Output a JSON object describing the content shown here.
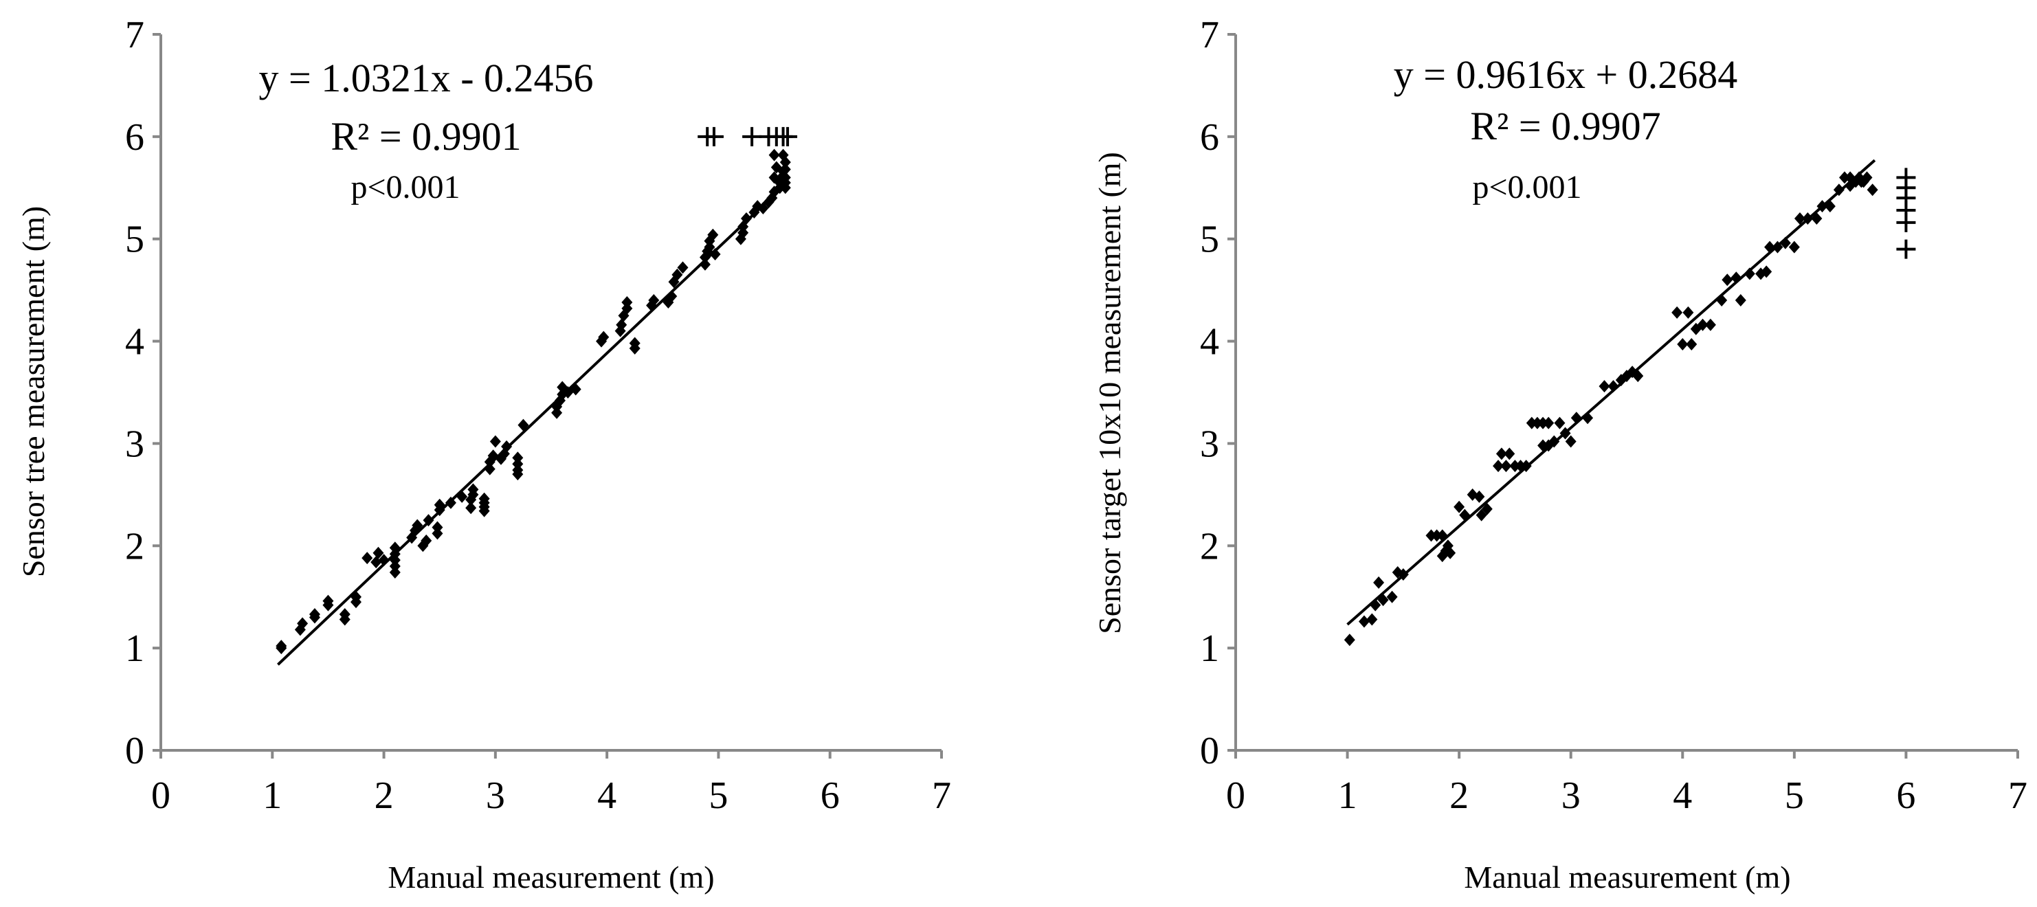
{
  "chart_data": [
    {
      "type": "scatter",
      "title": "",
      "xlabel": "Manual measurement (m)",
      "ylabel": "Sensor tree measurement (m)",
      "xlim": [
        0,
        7
      ],
      "ylim": [
        0,
        7
      ],
      "xticks": [
        "0",
        "1",
        "2",
        "3",
        "4",
        "5",
        "6",
        "7"
      ],
      "yticks": [
        "0",
        "1",
        "2",
        "3",
        "4",
        "5",
        "6",
        "7"
      ],
      "grid": false,
      "annotations": {
        "equation": "y = 1.0321x - 0.2456",
        "r2": "R² = 0.9901",
        "p": "p<0.001"
      },
      "trendline": {
        "slope": 1.0321,
        "intercept": -0.2456,
        "x_range": [
          1.05,
          5.62
        ]
      },
      "series": [
        {
          "name": "diamond points",
          "marker": "diamond",
          "points": [
            [
              1.08,
              1.02
            ],
            [
              1.08,
              1.0
            ],
            [
              1.25,
              1.18
            ],
            [
              1.27,
              1.24
            ],
            [
              1.38,
              1.3
            ],
            [
              1.38,
              1.33
            ],
            [
              1.5,
              1.42
            ],
            [
              1.5,
              1.46
            ],
            [
              1.65,
              1.28
            ],
            [
              1.65,
              1.33
            ],
            [
              1.75,
              1.45
            ],
            [
              1.75,
              1.5
            ],
            [
              1.85,
              1.88
            ],
            [
              1.93,
              1.84
            ],
            [
              1.95,
              1.93
            ],
            [
              2.0,
              1.86
            ],
            [
              2.1,
              1.74
            ],
            [
              2.1,
              1.8
            ],
            [
              2.1,
              1.86
            ],
            [
              2.1,
              1.92
            ],
            [
              2.1,
              1.98
            ],
            [
              2.25,
              2.08
            ],
            [
              2.28,
              2.15
            ],
            [
              2.3,
              2.2
            ],
            [
              2.35,
              2.0
            ],
            [
              2.38,
              2.05
            ],
            [
              2.4,
              2.25
            ],
            [
              2.48,
              2.12
            ],
            [
              2.48,
              2.18
            ],
            [
              2.5,
              2.35
            ],
            [
              2.5,
              2.4
            ],
            [
              2.6,
              2.42
            ],
            [
              2.7,
              2.48
            ],
            [
              2.78,
              2.37
            ],
            [
              2.78,
              2.45
            ],
            [
              2.8,
              2.5
            ],
            [
              2.8,
              2.55
            ],
            [
              2.9,
              2.34
            ],
            [
              2.9,
              2.38
            ],
            [
              2.9,
              2.42
            ],
            [
              2.9,
              2.46
            ],
            [
              2.95,
              2.75
            ],
            [
              2.95,
              2.82
            ],
            [
              2.98,
              2.88
            ],
            [
              3.0,
              3.02
            ],
            [
              3.05,
              2.85
            ],
            [
              3.08,
              2.9
            ],
            [
              3.1,
              2.97
            ],
            [
              3.2,
              2.7
            ],
            [
              3.2,
              2.74
            ],
            [
              3.2,
              2.8
            ],
            [
              3.2,
              2.86
            ],
            [
              3.25,
              3.18
            ],
            [
              3.55,
              3.3
            ],
            [
              3.55,
              3.36
            ],
            [
              3.58,
              3.42
            ],
            [
              3.6,
              3.48
            ],
            [
              3.6,
              3.55
            ],
            [
              3.65,
              3.5
            ],
            [
              3.72,
              3.53
            ],
            [
              3.95,
              4.0
            ],
            [
              3.97,
              4.04
            ],
            [
              4.12,
              4.1
            ],
            [
              4.13,
              4.16
            ],
            [
              4.15,
              4.25
            ],
            [
              4.18,
              4.32
            ],
            [
              4.18,
              4.38
            ],
            [
              4.25,
              3.93
            ],
            [
              4.25,
              3.98
            ],
            [
              4.4,
              4.35
            ],
            [
              4.42,
              4.4
            ],
            [
              4.55,
              4.38
            ],
            [
              4.58,
              4.44
            ],
            [
              4.6,
              4.58
            ],
            [
              4.63,
              4.65
            ],
            [
              4.68,
              4.72
            ],
            [
              4.88,
              4.75
            ],
            [
              4.88,
              4.82
            ],
            [
              4.9,
              4.88
            ],
            [
              4.92,
              4.92
            ],
            [
              4.92,
              4.98
            ],
            [
              4.95,
              5.04
            ],
            [
              4.97,
              4.85
            ],
            [
              5.2,
              5.0
            ],
            [
              5.22,
              5.06
            ],
            [
              5.22,
              5.12
            ],
            [
              5.25,
              5.2
            ],
            [
              5.32,
              5.26
            ],
            [
              5.35,
              5.32
            ],
            [
              5.4,
              5.3
            ],
            [
              5.45,
              5.36
            ],
            [
              5.48,
              5.4
            ],
            [
              5.5,
              5.46
            ],
            [
              5.5,
              5.6
            ],
            [
              5.52,
              5.7
            ],
            [
              5.55,
              5.5
            ],
            [
              5.55,
              5.55
            ],
            [
              5.58,
              5.58
            ],
            [
              5.58,
              5.62
            ],
            [
              5.58,
              5.66
            ],
            [
              5.6,
              5.5
            ],
            [
              5.6,
              5.55
            ],
            [
              5.6,
              5.6
            ],
            [
              5.6,
              5.68
            ],
            [
              5.5,
              5.82
            ],
            [
              5.58,
              5.82
            ],
            [
              5.6,
              5.75
            ]
          ]
        },
        {
          "name": "cross points",
          "marker": "plus",
          "points": [
            [
              4.9,
              6.0
            ],
            [
              4.96,
              6.0
            ],
            [
              5.3,
              6.0
            ],
            [
              5.45,
              6.0
            ],
            [
              5.52,
              6.0
            ],
            [
              5.58,
              6.0
            ],
            [
              5.62,
              6.0
            ]
          ]
        }
      ]
    },
    {
      "type": "scatter",
      "title": "",
      "xlabel": "Manual measurement (m)",
      "ylabel": "Sensor target 10x10 measurement (m)",
      "xlim": [
        0,
        7
      ],
      "ylim": [
        0,
        7
      ],
      "xticks": [
        "0",
        "1",
        "2",
        "3",
        "4",
        "5",
        "6",
        "7"
      ],
      "yticks": [
        "0",
        "1",
        "2",
        "3",
        "4",
        "5",
        "6",
        "7"
      ],
      "grid": false,
      "annotations": {
        "equation": "y = 0.9616x + 0.2684",
        "r2": "R² = 0.9907",
        "p": "p<0.001"
      },
      "trendline": {
        "slope": 0.9616,
        "intercept": 0.2684,
        "x_range": [
          1.0,
          5.72
        ]
      },
      "series": [
        {
          "name": "diamond points",
          "marker": "diamond",
          "points": [
            [
              1.02,
              1.08
            ],
            [
              1.15,
              1.26
            ],
            [
              1.22,
              1.28
            ],
            [
              1.25,
              1.42
            ],
            [
              1.28,
              1.64
            ],
            [
              1.32,
              1.47
            ],
            [
              1.4,
              1.5
            ],
            [
              1.45,
              1.74
            ],
            [
              1.5,
              1.72
            ],
            [
              1.75,
              2.1
            ],
            [
              1.8,
              2.1
            ],
            [
              1.85,
              2.1
            ],
            [
              1.85,
              1.9
            ],
            [
              1.88,
              1.95
            ],
            [
              1.9,
              2.0
            ],
            [
              1.92,
              1.93
            ],
            [
              2.0,
              2.38
            ],
            [
              2.05,
              2.3
            ],
            [
              2.12,
              2.5
            ],
            [
              2.18,
              2.48
            ],
            [
              2.2,
              2.3
            ],
            [
              2.25,
              2.36
            ],
            [
              2.35,
              2.78
            ],
            [
              2.38,
              2.9
            ],
            [
              2.42,
              2.78
            ],
            [
              2.45,
              2.9
            ],
            [
              2.5,
              2.78
            ],
            [
              2.55,
              2.78
            ],
            [
              2.6,
              2.78
            ],
            [
              2.65,
              3.2
            ],
            [
              2.7,
              3.2
            ],
            [
              2.75,
              3.2
            ],
            [
              2.8,
              3.2
            ],
            [
              2.9,
              3.2
            ],
            [
              2.75,
              2.98
            ],
            [
              2.8,
              2.98
            ],
            [
              2.85,
              3.02
            ],
            [
              2.95,
              3.1
            ],
            [
              3.0,
              3.02
            ],
            [
              3.05,
              3.25
            ],
            [
              3.15,
              3.25
            ],
            [
              3.3,
              3.56
            ],
            [
              3.38,
              3.56
            ],
            [
              3.45,
              3.62
            ],
            [
              3.5,
              3.66
            ],
            [
              3.55,
              3.7
            ],
            [
              3.6,
              3.66
            ],
            [
              3.95,
              4.28
            ],
            [
              4.05,
              4.28
            ],
            [
              4.0,
              3.97
            ],
            [
              4.08,
              3.97
            ],
            [
              4.12,
              4.12
            ],
            [
              4.18,
              4.16
            ],
            [
              4.25,
              4.16
            ],
            [
              4.35,
              4.4
            ],
            [
              4.4,
              4.6
            ],
            [
              4.48,
              4.62
            ],
            [
              4.52,
              4.4
            ],
            [
              4.6,
              4.66
            ],
            [
              4.7,
              4.66
            ],
            [
              4.75,
              4.68
            ],
            [
              4.78,
              4.92
            ],
            [
              4.85,
              4.92
            ],
            [
              4.92,
              4.96
            ],
            [
              5.0,
              4.92
            ],
            [
              5.05,
              5.2
            ],
            [
              5.12,
              5.2
            ],
            [
              5.2,
              5.2
            ],
            [
              5.25,
              5.32
            ],
            [
              5.32,
              5.32
            ],
            [
              5.4,
              5.48
            ],
            [
              5.45,
              5.6
            ],
            [
              5.5,
              5.6
            ],
            [
              5.55,
              5.56
            ],
            [
              5.58,
              5.6
            ],
            [
              5.62,
              5.56
            ],
            [
              5.65,
              5.6
            ],
            [
              5.7,
              5.48
            ],
            [
              5.5,
              5.52
            ],
            [
              5.6,
              5.56
            ]
          ]
        },
        {
          "name": "cross points",
          "marker": "plus",
          "points": [
            [
              6.0,
              5.6
            ],
            [
              6.0,
              5.5
            ],
            [
              6.0,
              5.4
            ],
            [
              6.0,
              5.28
            ],
            [
              6.0,
              5.16
            ],
            [
              6.0,
              4.9
            ]
          ]
        }
      ]
    }
  ]
}
